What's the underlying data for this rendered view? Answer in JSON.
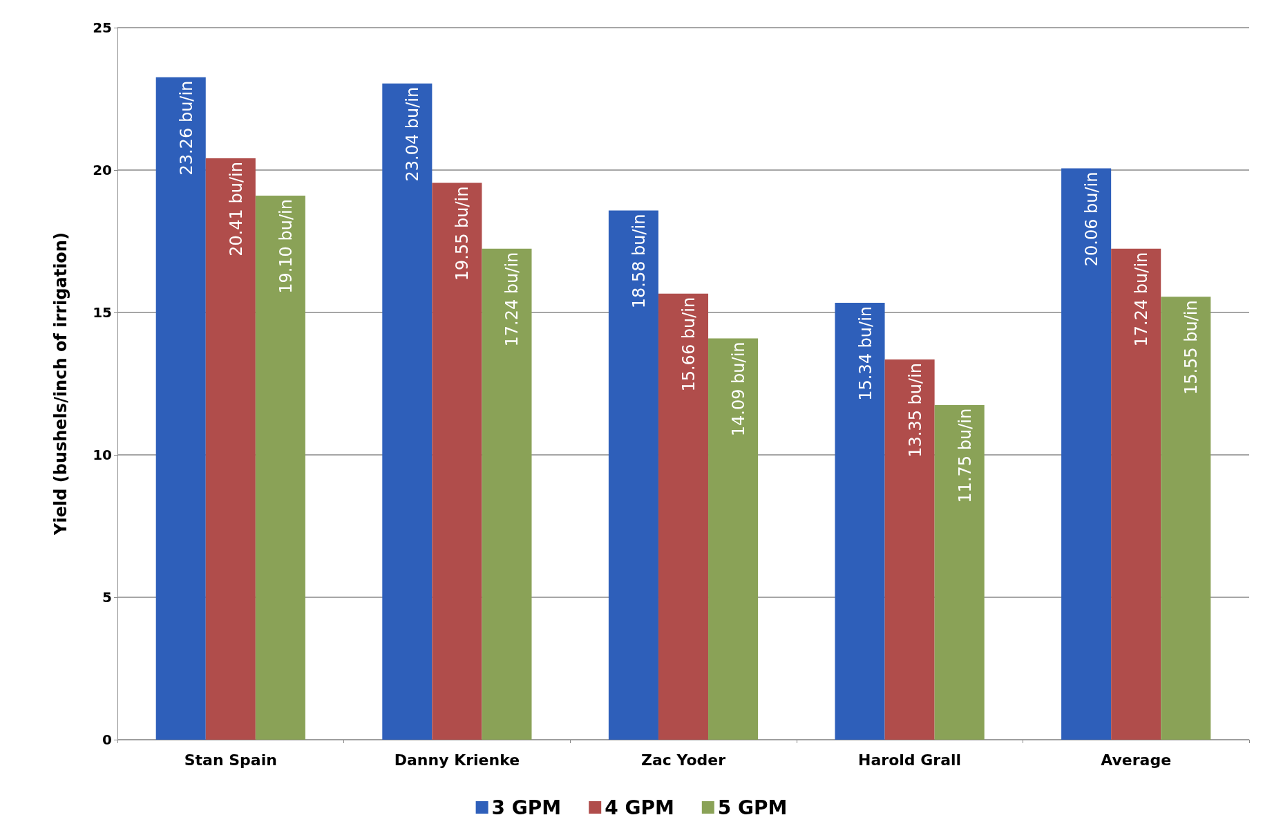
{
  "chart_data": {
    "type": "bar",
    "ylabel": "Yield (bushels/inch of irrigation)",
    "categories": [
      "Stan Spain",
      "Danny Krienke",
      "Zac Yoder",
      "Harold Grall",
      "Average"
    ],
    "series": [
      {
        "name": "3 GPM",
        "color": "#2e5fba",
        "values": [
          23.26,
          23.04,
          18.58,
          15.34,
          20.06
        ],
        "value_labels": [
          "23.26 bu/in",
          "23.04 bu/in",
          "18.58 bu/in",
          "15.34 bu/in",
          "20.06 bu/in"
        ]
      },
      {
        "name": "4 GPM",
        "color": "#b04d4b",
        "values": [
          20.41,
          19.55,
          15.66,
          13.35,
          17.24
        ],
        "value_labels": [
          "20.41 bu/in",
          "19.55 bu/in",
          "15.66 bu/in",
          "13.35 bu/in",
          "17.24 bu/in"
        ]
      },
      {
        "name": "5 GPM",
        "color": "#8aa257",
        "values": [
          19.1,
          17.24,
          14.09,
          11.75,
          15.55
        ],
        "value_labels": [
          "19.10 bu/in",
          "17.24 bu/in",
          "14.09 bu/in",
          "11.75 bu/in",
          "15.55 bu/in"
        ]
      }
    ],
    "ylim": [
      0,
      25
    ],
    "yticks": [
      0,
      5,
      10,
      15,
      20,
      25
    ],
    "grid": "y",
    "legend": "bottom"
  }
}
